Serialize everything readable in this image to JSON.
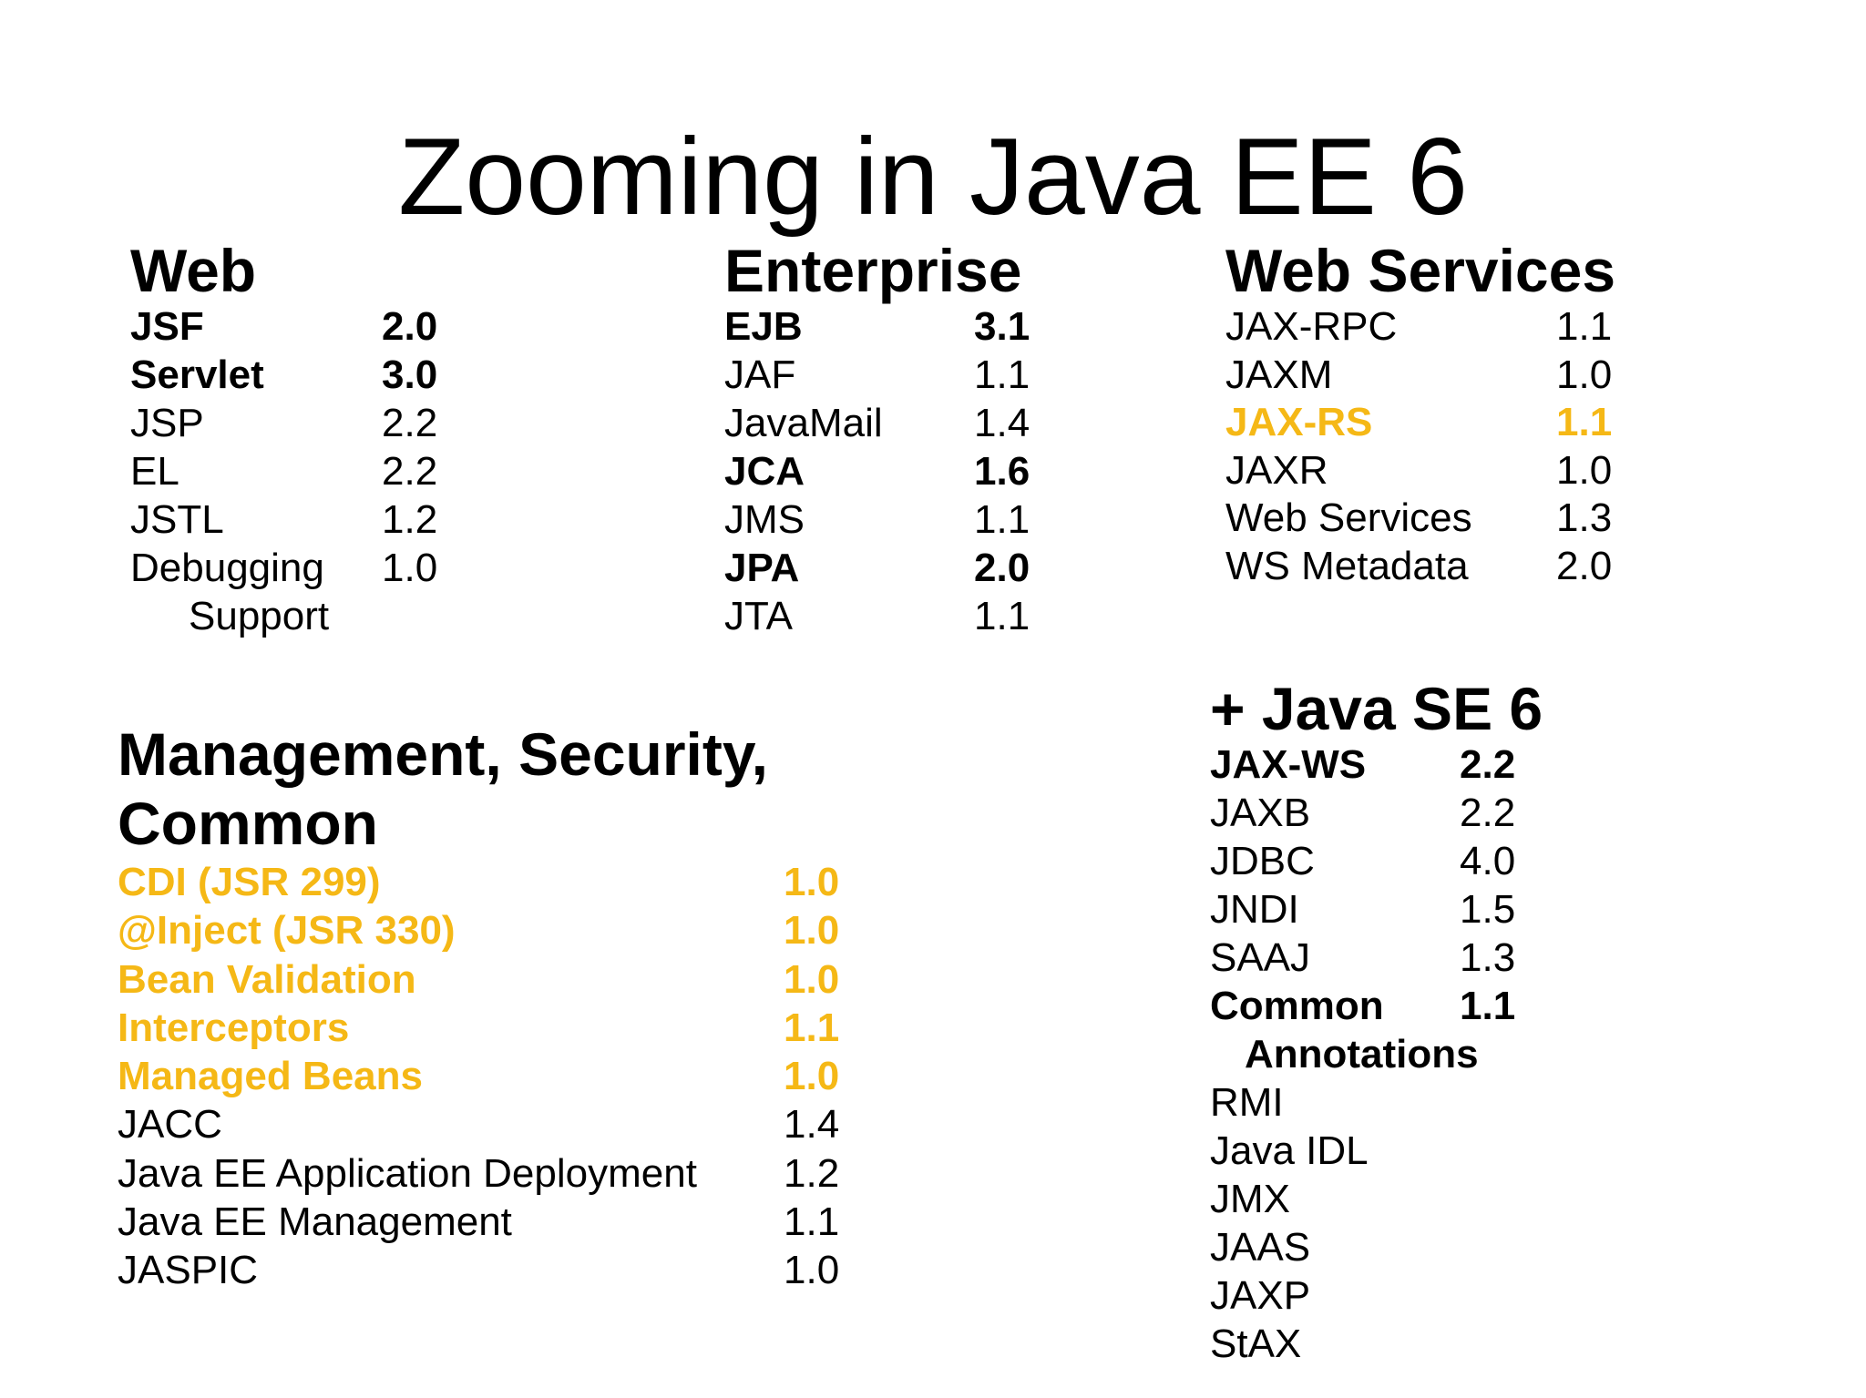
{
  "slide": {
    "title": "Zooming in Java EE 6"
  },
  "web": {
    "heading": "Web",
    "items": [
      {
        "name": "JSF",
        "version": "2.0",
        "style": "bold"
      },
      {
        "name": "Servlet",
        "version": "3.0",
        "style": "bold"
      },
      {
        "name": "JSP",
        "version": "2.2",
        "style": "normal"
      },
      {
        "name": "EL",
        "version": "2.2",
        "style": "normal"
      },
      {
        "name": "JSTL",
        "version": "1.2",
        "style": "normal"
      },
      {
        "name": "Debugging",
        "version": "1.0",
        "style": "normal"
      },
      {
        "name": "Support",
        "version": "",
        "style": "normal",
        "continuation": true
      }
    ]
  },
  "enterprise": {
    "heading": "Enterprise",
    "items": [
      {
        "name": "EJB",
        "version": "3.1",
        "style": "bold"
      },
      {
        "name": "JAF",
        "version": "1.1",
        "style": "normal"
      },
      {
        "name": "JavaMail",
        "version": "1.4",
        "style": "normal"
      },
      {
        "name": "JCA",
        "version": "1.6",
        "style": "bold"
      },
      {
        "name": "JMS",
        "version": "1.1",
        "style": "normal"
      },
      {
        "name": "JPA",
        "version": "2.0",
        "style": "bold"
      },
      {
        "name": "JTA",
        "version": "1.1",
        "style": "normal"
      }
    ]
  },
  "web_services": {
    "heading": "Web Services",
    "items": [
      {
        "name": "JAX-RPC",
        "version": "1.1",
        "style": "normal"
      },
      {
        "name": "JAXM",
        "version": "1.0",
        "style": "normal"
      },
      {
        "name": "JAX-RS",
        "version": "1.1",
        "style": "highlight"
      },
      {
        "name": "JAXR",
        "version": "1.0",
        "style": "normal"
      },
      {
        "name": "Web Services",
        "version": "1.3",
        "style": "normal"
      },
      {
        "name": "WS Metadata",
        "version": "2.0",
        "style": "normal"
      }
    ]
  },
  "java_se": {
    "heading": "+ Java SE 6",
    "items": [
      {
        "name": "JAX-WS",
        "version": "2.2",
        "style": "bold"
      },
      {
        "name": "JAXB",
        "version": "2.2",
        "style": "normal"
      },
      {
        "name": "JDBC",
        "version": "4.0",
        "style": "normal"
      },
      {
        "name": "JNDI",
        "version": "1.5",
        "style": "normal"
      },
      {
        "name": "SAAJ",
        "version": "1.3",
        "style": "normal"
      },
      {
        "name": "Common",
        "version": "1.1",
        "style": "bold"
      },
      {
        "name": "Annotations",
        "version": "",
        "style": "bold",
        "continuation": true
      },
      {
        "name": "RMI",
        "version": "",
        "style": "normal"
      },
      {
        "name": "Java IDL",
        "version": "",
        "style": "normal"
      },
      {
        "name": "JMX",
        "version": "",
        "style": "normal"
      },
      {
        "name": "JAAS",
        "version": "",
        "style": "normal"
      },
      {
        "name": "JAXP",
        "version": "",
        "style": "normal"
      },
      {
        "name": "StAX",
        "version": "",
        "style": "normal"
      }
    ]
  },
  "management": {
    "heading_lines": [
      "Management, Security,",
      "Common"
    ],
    "items": [
      {
        "name": "CDI (JSR 299)",
        "version": "1.0",
        "style": "highlight"
      },
      {
        "name": "@Inject  (JSR 330)",
        "version": "1.0",
        "style": "highlight"
      },
      {
        "name": "Bean Validation",
        "version": "1.0",
        "style": "highlight"
      },
      {
        "name": "Interceptors",
        "version": "1.1",
        "style": "highlight"
      },
      {
        "name": "Managed Beans",
        "version": "1.0",
        "style": "highlight"
      },
      {
        "name": "JACC",
        "version": "1.4",
        "style": "normal"
      },
      {
        "name": "Java EE Application Deployment",
        "version": "1.2",
        "style": "normal"
      },
      {
        "name": "Java EE Management",
        "version": "1.1",
        "style": "normal"
      },
      {
        "name": "JASPIC",
        "version": "1.0",
        "style": "normal"
      }
    ]
  },
  "colors": {
    "highlight": "#f5b816",
    "text": "#000000",
    "background": "#ffffff"
  }
}
